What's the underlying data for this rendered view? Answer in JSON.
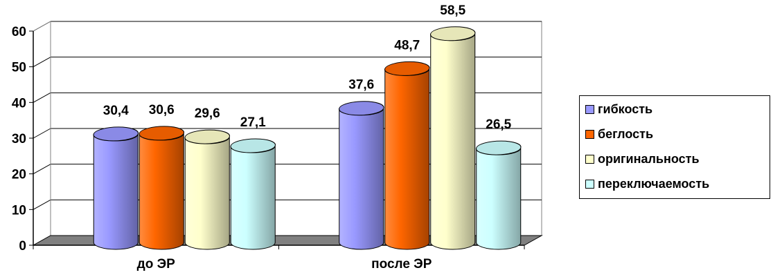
{
  "chart_data": {
    "type": "bar",
    "categories": [
      "до ЭР",
      "после ЭР"
    ],
    "series": [
      {
        "name": "гибкость",
        "values": [
          30.4,
          37.6
        ],
        "labels": [
          "30,4",
          "37,6"
        ],
        "color": "#9999ff"
      },
      {
        "name": "беглость",
        "values": [
          30.6,
          48.7
        ],
        "labels": [
          "30,6",
          "48,7"
        ],
        "color": "#ff6600"
      },
      {
        "name": "оригинальность",
        "values": [
          29.6,
          58.5
        ],
        "labels": [
          "29,6",
          "58,5"
        ],
        "color": "#ffffcc"
      },
      {
        "name": "переключаемость",
        "values": [
          27.1,
          26.5
        ],
        "labels": [
          "27,1",
          "26,5"
        ],
        "color": "#ccffff"
      }
    ],
    "ylim": [
      0,
      60
    ],
    "yticks": [
      "0",
      "10",
      "20",
      "30",
      "40",
      "50",
      "60"
    ],
    "grid": true,
    "legend_position": "right",
    "style": "3d-cylinder"
  }
}
